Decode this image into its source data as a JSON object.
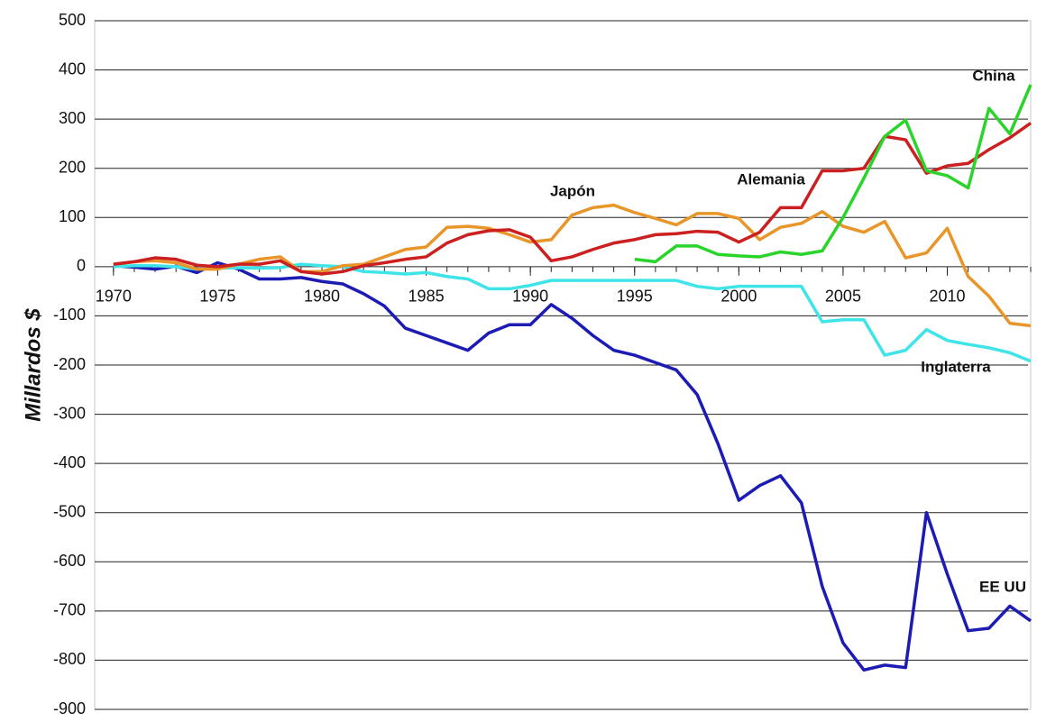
{
  "chart_data": {
    "type": "line",
    "ylabel": "Millardos $",
    "x": [
      1970,
      1971,
      1972,
      1973,
      1974,
      1975,
      1976,
      1977,
      1978,
      1979,
      1980,
      1981,
      1982,
      1983,
      1984,
      1985,
      1986,
      1987,
      1988,
      1989,
      1990,
      1991,
      1992,
      1993,
      1994,
      1995,
      1996,
      1997,
      1998,
      1999,
      2000,
      2001,
      2002,
      2003,
      2004,
      2005,
      2006,
      2007,
      2008,
      2009,
      2010,
      2011,
      2012,
      2013,
      2014
    ],
    "xlim": [
      1969.1,
      2014
    ],
    "xticks": [
      1970,
      1975,
      1980,
      1985,
      1990,
      1995,
      2000,
      2005,
      2010
    ],
    "ylim": [
      -900,
      500
    ],
    "yticks": [
      -900,
      -800,
      -700,
      -600,
      -500,
      -400,
      -300,
      -200,
      -100,
      0,
      100,
      200,
      300,
      400,
      500
    ],
    "grid": true,
    "series": [
      {
        "name": "EE UU",
        "color": "#1c1cb4",
        "values": [
          2,
          -1,
          -5,
          1,
          -12,
          8,
          -5,
          -25,
          -25,
          -22,
          -30,
          -35,
          -55,
          -80,
          -125,
          -140,
          -155,
          -170,
          -135,
          -118,
          -118,
          -77,
          -105,
          -140,
          -170,
          -180,
          -195,
          -210,
          -260,
          -360,
          -475,
          -445,
          -425,
          -480,
          -650,
          -765,
          -820,
          -810,
          -815,
          -500,
          -625,
          -740,
          -735,
          -690,
          -720
        ]
      },
      {
        "name": "Inglaterra",
        "color": "#3ee4e8",
        "values": [
          0,
          2,
          2,
          0,
          -5,
          -3,
          -2,
          -3,
          -2,
          5,
          2,
          0,
          -10,
          -12,
          -15,
          -12,
          -20,
          -25,
          -45,
          -45,
          -38,
          -28,
          -28,
          -28,
          -28,
          -28,
          -28,
          -28,
          -40,
          -45,
          -40,
          -40,
          -40,
          -40,
          -112,
          -108,
          -108,
          -180,
          -170,
          -128,
          -150,
          -158,
          -165,
          -175,
          -192
        ]
      },
      {
        "name": "Japón",
        "color": "#e8962a",
        "values": [
          5,
          10,
          12,
          8,
          -5,
          -5,
          5,
          15,
          20,
          -10,
          -10,
          2,
          5,
          20,
          35,
          40,
          80,
          82,
          78,
          65,
          50,
          55,
          105,
          120,
          125,
          110,
          98,
          85,
          108,
          108,
          98,
          55,
          80,
          88,
          112,
          82,
          70,
          92,
          18,
          28,
          78,
          -20,
          -60,
          -115,
          -120
        ]
      },
      {
        "name": "Alemania",
        "color": "#cc1f1f",
        "values": [
          5,
          10,
          18,
          15,
          3,
          0,
          5,
          5,
          12,
          -10,
          -15,
          -10,
          2,
          8,
          15,
          20,
          48,
          65,
          73,
          75,
          60,
          12,
          20,
          35,
          48,
          55,
          65,
          67,
          72,
          70,
          50,
          70,
          120,
          120,
          195,
          195,
          200,
          265,
          258,
          190,
          205,
          210,
          238,
          262,
          292
        ]
      },
      {
        "name": "China",
        "color": "#2ad42a",
        "values": [
          null,
          null,
          null,
          null,
          null,
          null,
          null,
          null,
          null,
          null,
          null,
          null,
          null,
          null,
          null,
          null,
          null,
          null,
          null,
          null,
          null,
          null,
          null,
          null,
          null,
          15,
          10,
          42,
          42,
          25,
          22,
          20,
          30,
          25,
          32,
          100,
          180,
          265,
          298,
          195,
          185,
          160,
          322,
          270,
          370
        ]
      }
    ]
  }
}
